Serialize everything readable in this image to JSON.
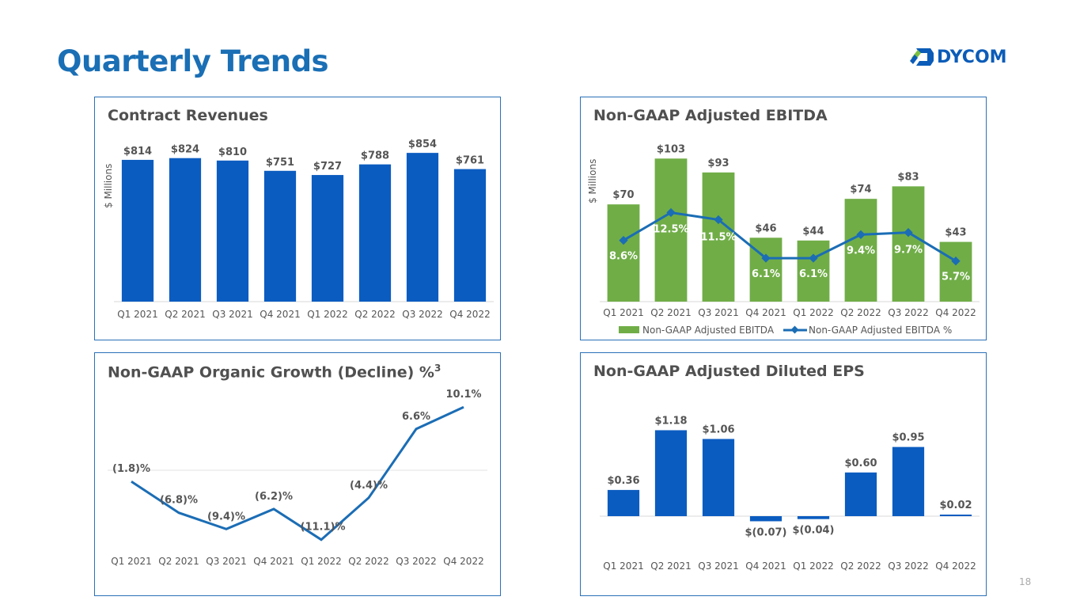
{
  "page": {
    "title": "Quarterly Trends",
    "logo_text": "DYCOM",
    "page_number": "18"
  },
  "colors": {
    "title_blue": "#1a6fb5",
    "bar_blue": "#0b5cc0",
    "bar_green": "#70ad47",
    "line_blue": "#1b6db5",
    "label_gray": "#555555"
  },
  "chart_data": [
    {
      "id": "revenues",
      "type": "bar",
      "title": "Contract Revenues",
      "ylabel": "$ Millions",
      "xlabel": "",
      "categories": [
        "Q1 2021",
        "Q2 2021",
        "Q3 2021",
        "Q4 2021",
        "Q1 2022",
        "Q2 2022",
        "Q3 2022",
        "Q4 2022"
      ],
      "values": [
        814,
        824,
        810,
        751,
        727,
        788,
        854,
        761
      ],
      "data_labels": [
        "$814",
        "$824",
        "$810",
        "$751",
        "$727",
        "$788",
        "$854",
        "$761"
      ],
      "ylim": [
        0,
        900
      ],
      "grid": false,
      "legend": "none"
    },
    {
      "id": "ebitda",
      "type": "bar",
      "title": "Non-GAAP Adjusted EBITDA",
      "ylabel": "$ Millions",
      "xlabel": "",
      "categories": [
        "Q1 2021",
        "Q2 2021",
        "Q3 2021",
        "Q4 2021",
        "Q1 2022",
        "Q2 2022",
        "Q3 2022",
        "Q4 2022"
      ],
      "series": [
        {
          "name": "Non-GAAP Adjusted EBITDA",
          "type": "bar",
          "values": [
            70,
            103,
            93,
            46,
            44,
            74,
            83,
            43
          ],
          "data_labels": [
            "$70",
            "$103",
            "$93",
            "$46",
            "$44",
            "$74",
            "$83",
            "$43"
          ]
        },
        {
          "name": "Non-GAAP Adjusted EBITDA %",
          "type": "line",
          "values": [
            8.6,
            12.5,
            11.5,
            6.1,
            6.1,
            9.4,
            9.7,
            5.7
          ],
          "data_labels": [
            "8.6%",
            "12.5%",
            "11.5%",
            "6.1%",
            "6.1%",
            "9.4%",
            "9.7%",
            "5.7%"
          ]
        }
      ],
      "ylim": [
        0,
        110
      ],
      "y2lim": [
        0,
        22
      ],
      "grid": false,
      "legend": "bottom"
    },
    {
      "id": "organic",
      "type": "line",
      "title": "Non-GAAP Organic Growth (Decline) %",
      "title_superscript": "3",
      "xlabel": "",
      "ylabel": "",
      "categories": [
        "Q1 2021",
        "Q2 2021",
        "Q3 2021",
        "Q4 2021",
        "Q1 2022",
        "Q2 2022",
        "Q3 2022",
        "Q4 2022"
      ],
      "values": [
        -1.8,
        -6.8,
        -9.4,
        -6.2,
        -11.1,
        -4.4,
        6.6,
        10.1
      ],
      "data_labels": [
        "(1.8)%",
        "(6.8)%",
        "(9.4)%",
        "(6.2)%",
        "(11.1)%",
        "(4.4)%",
        "6.6%",
        "10.1%"
      ],
      "ylim": [
        -14,
        12
      ],
      "grid": false,
      "legend": "none"
    },
    {
      "id": "eps",
      "type": "bar",
      "title": "Non-GAAP Adjusted Diluted EPS",
      "xlabel": "",
      "ylabel": "",
      "categories": [
        "Q1 2021",
        "Q2 2021",
        "Q3 2021",
        "Q4 2021",
        "Q1 2022",
        "Q2 2022",
        "Q3 2022",
        "Q4 2022"
      ],
      "values": [
        0.36,
        1.18,
        1.06,
        -0.07,
        -0.04,
        0.6,
        0.95,
        0.02
      ],
      "data_labels": [
        "$0.36",
        "$1.18",
        "$1.06",
        "$(0.07)",
        "$(0.04)",
        "$0.60",
        "$0.95",
        "$0.02"
      ],
      "ylim": [
        -0.3,
        1.3
      ],
      "grid": false,
      "legend": "none"
    }
  ]
}
